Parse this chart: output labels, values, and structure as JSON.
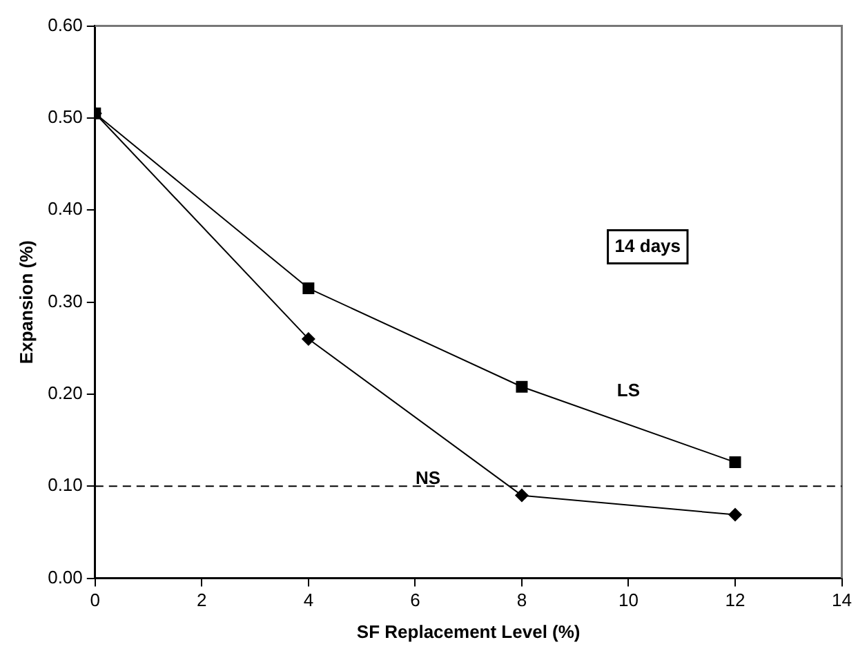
{
  "chart_data": {
    "type": "line",
    "xlabel": "SF Replacement Level (%)",
    "ylabel": "Expansion (%)",
    "x": [
      0,
      4,
      8,
      12
    ],
    "series": [
      {
        "name": "NS",
        "color": "#000000",
        "marker": "diamond",
        "values": [
          0.505,
          0.26,
          0.09,
          0.069
        ]
      },
      {
        "name": "LS",
        "color": "#000000",
        "marker": "square",
        "values": [
          0.505,
          0.315,
          0.208,
          0.126
        ]
      }
    ],
    "xlim": [
      0,
      14
    ],
    "xticks": [
      0,
      2,
      4,
      6,
      8,
      10,
      12,
      14
    ],
    "ylim": [
      0,
      0.6
    ],
    "yticks": [
      {
        "value": 0,
        "label": "0.00"
      },
      {
        "value": 0.1,
        "label": "0.10"
      },
      {
        "value": 0.2,
        "label": "0.20"
      },
      {
        "value": 0.3,
        "label": "0.30"
      },
      {
        "value": 0.4,
        "label": "0.40"
      },
      {
        "value": 0.5,
        "label": "0.50"
      },
      {
        "value": 0.6,
        "label": "0.60"
      }
    ],
    "ref_lines": [
      {
        "axis": "y",
        "value": 0.1,
        "color": "#000000",
        "line_style": "dashed"
      }
    ],
    "annotations": [
      "14 days"
    ],
    "grid": false,
    "legend": false,
    "line_style": "solid"
  }
}
